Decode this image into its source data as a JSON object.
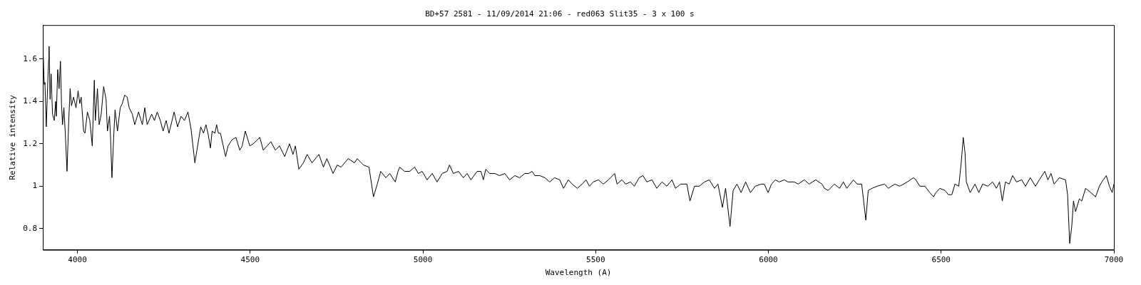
{
  "chart_data": {
    "type": "line",
    "title": "BD+57 2581 - 11/09/2014 21:06 - red063 Slit35 - 3 x 100 s",
    "xlabel": "Wavelength (A)",
    "ylabel": "Relative intensity",
    "xlim": [
      3900,
      7000
    ],
    "xticks": [
      4000,
      4500,
      5000,
      5500,
      6000,
      6500,
      7000
    ],
    "ylim": [
      0.7,
      1.76
    ],
    "yticks": [
      0.8,
      1,
      1.2,
      1.4,
      1.6
    ],
    "grid": false,
    "legend": false,
    "marker": "none",
    "line_style": "solid",
    "series": [
      {
        "color": "#000000",
        "x": [
          3901,
          3904,
          3906,
          3910,
          3914,
          3917,
          3918,
          3921,
          3924,
          3928,
          3933,
          3937,
          3939,
          3943,
          3947,
          3951,
          3954,
          3957,
          3961,
          3965,
          3970,
          3975,
          3979,
          3983,
          3989,
          3996,
          4002,
          4007,
          4011,
          4018,
          4022,
          4029,
          4036,
          4043,
          4049,
          4052,
          4058,
          4063,
          4069,
          4076,
          4083,
          4087,
          4093,
          4096,
          4100,
          4105,
          4109,
          4116,
          4124,
          4130,
          4137,
          4144,
          4150,
          4159,
          4166,
          4177,
          4188,
          4195,
          4202,
          4215,
          4223,
          4231,
          4240,
          4248,
          4257,
          4265,
          4280,
          4290,
          4300,
          4310,
          4320,
          4329,
          4340,
          4347,
          4357,
          4365,
          4372,
          4378,
          4385,
          4390,
          4398,
          4403,
          4408,
          4414,
          4429,
          4436,
          4448,
          4459,
          4470,
          4477,
          4486,
          4499,
          4509,
          4528,
          4538,
          4549,
          4560,
          4573,
          4585,
          4600,
          4614,
          4624,
          4631,
          4641,
          4654,
          4665,
          4679,
          4699,
          4712,
          4722,
          4740,
          4752,
          4763,
          4784,
          4802,
          4810,
          4828,
          4844,
          4857,
          4868,
          4878,
          4893,
          4904,
          4920,
          4928,
          4933,
          4947,
          4962,
          4976,
          4987,
          4998,
          5012,
          5027,
          5041,
          5056,
          5070,
          5077,
          5088,
          5103,
          5117,
          5128,
          5139,
          5157,
          5168,
          5175,
          5182,
          5193,
          5208,
          5222,
          5237,
          5251,
          5266,
          5280,
          5295,
          5306,
          5316,
          5324,
          5338,
          5353,
          5367,
          5381,
          5396,
          5407,
          5421,
          5432,
          5447,
          5461,
          5472,
          5482,
          5493,
          5508,
          5522,
          5537,
          5555,
          5562,
          5576,
          5587,
          5601,
          5612,
          5626,
          5637,
          5648,
          5663,
          5677,
          5692,
          5706,
          5721,
          5731,
          5746,
          5764,
          5773,
          5786,
          5800,
          5815,
          5829,
          5844,
          5854,
          5867,
          5876,
          5889,
          5898,
          5909,
          5921,
          5934,
          5948,
          5962,
          5979,
          5988,
          5999,
          6009,
          6020,
          6031,
          6046,
          6057,
          6075,
          6086,
          6104,
          6118,
          6137,
          6155,
          6162,
          6173,
          6191,
          6206,
          6217,
          6227,
          6246,
          6257,
          6270,
          6275,
          6282,
          6289,
          6300,
          6315,
          6336,
          6347,
          6366,
          6380,
          6402,
          6420,
          6427,
          6438,
          6453,
          6467,
          6478,
          6485,
          6496,
          6511,
          6521,
          6531,
          6540,
          6551,
          6558,
          6564,
          6569,
          6573,
          6584,
          6598,
          6609,
          6620,
          6635,
          6649,
          6660,
          6669,
          6677,
          6686,
          6697,
          6707,
          6718,
          6733,
          6744,
          6758,
          6773,
          6784,
          6800,
          6809,
          6818,
          6827,
          6842,
          6860,
          6866,
          6872,
          6878,
          6883,
          6889,
          6900,
          6907,
          6918,
          6933,
          6947,
          6958,
          6965,
          6978,
          6987,
          6995,
          7000
        ],
        "values": [
          1.62,
          1.48,
          1.49,
          1.28,
          1.48,
          1.6,
          1.66,
          1.41,
          1.53,
          1.34,
          1.31,
          1.4,
          1.33,
          1.55,
          1.46,
          1.59,
          1.39,
          1.29,
          1.37,
          1.25,
          1.07,
          1.31,
          1.46,
          1.38,
          1.42,
          1.37,
          1.45,
          1.39,
          1.42,
          1.26,
          1.25,
          1.35,
          1.31,
          1.19,
          1.5,
          1.31,
          1.46,
          1.29,
          1.34,
          1.47,
          1.41,
          1.26,
          1.33,
          1.23,
          1.04,
          1.23,
          1.36,
          1.26,
          1.37,
          1.39,
          1.43,
          1.42,
          1.37,
          1.34,
          1.29,
          1.35,
          1.29,
          1.37,
          1.29,
          1.34,
          1.31,
          1.35,
          1.31,
          1.26,
          1.31,
          1.25,
          1.35,
          1.28,
          1.33,
          1.31,
          1.35,
          1.27,
          1.11,
          1.18,
          1.28,
          1.25,
          1.29,
          1.25,
          1.18,
          1.26,
          1.25,
          1.29,
          1.25,
          1.25,
          1.14,
          1.19,
          1.22,
          1.23,
          1.17,
          1.19,
          1.26,
          1.19,
          1.2,
          1.23,
          1.17,
          1.19,
          1.21,
          1.17,
          1.19,
          1.14,
          1.2,
          1.15,
          1.19,
          1.08,
          1.11,
          1.15,
          1.11,
          1.15,
          1.09,
          1.13,
          1.06,
          1.1,
          1.09,
          1.13,
          1.11,
          1.13,
          1.1,
          1.09,
          0.95,
          1.01,
          1.07,
          1.04,
          1.06,
          1.02,
          1.07,
          1.09,
          1.07,
          1.07,
          1.09,
          1.06,
          1.07,
          1.03,
          1.06,
          1.02,
          1.06,
          1.07,
          1.1,
          1.06,
          1.07,
          1.04,
          1.06,
          1.03,
          1.07,
          1.07,
          1.03,
          1.08,
          1.06,
          1.06,
          1.05,
          1.06,
          1.03,
          1.05,
          1.04,
          1.06,
          1.06,
          1.07,
          1.05,
          1.05,
          1.04,
          1.02,
          1.04,
          1.03,
          0.99,
          1.03,
          1.01,
          0.99,
          1.01,
          1.03,
          1.0,
          1.02,
          1.03,
          1.01,
          1.03,
          1.06,
          1.01,
          1.03,
          1.01,
          1.02,
          1.0,
          1.04,
          1.05,
          1.02,
          1.03,
          0.99,
          1.02,
          1.0,
          1.03,
          0.99,
          1.01,
          1.01,
          0.93,
          1.0,
          1.0,
          1.02,
          1.03,
          0.99,
          1.01,
          0.9,
          0.99,
          0.81,
          0.98,
          1.01,
          0.97,
          1.02,
          0.97,
          1.0,
          1.01,
          1.01,
          0.97,
          1.01,
          1.03,
          1.02,
          1.03,
          1.02,
          1.02,
          1.01,
          1.03,
          1.01,
          1.03,
          1.01,
          0.99,
          0.98,
          1.01,
          0.99,
          1.02,
          0.99,
          1.03,
          1.01,
          1.01,
          0.94,
          0.84,
          0.98,
          0.99,
          1.0,
          1.01,
          0.99,
          1.01,
          1.0,
          1.02,
          1.04,
          1.03,
          1.0,
          1.0,
          0.97,
          0.95,
          0.97,
          0.99,
          0.98,
          0.96,
          0.96,
          1.01,
          1.0,
          1.11,
          1.23,
          1.16,
          1.02,
          0.97,
          1.01,
          0.97,
          1.01,
          1.0,
          1.02,
          0.99,
          1.02,
          0.93,
          1.02,
          1.01,
          1.05,
          1.02,
          1.03,
          1.0,
          1.04,
          1.0,
          1.03,
          1.07,
          1.03,
          1.06,
          1.01,
          1.04,
          1.03,
          0.96,
          0.73,
          0.81,
          0.93,
          0.88,
          0.94,
          0.93,
          0.99,
          0.97,
          0.95,
          1.0,
          1.02,
          1.05,
          1.0,
          0.97,
          1.01
        ]
      }
    ]
  }
}
